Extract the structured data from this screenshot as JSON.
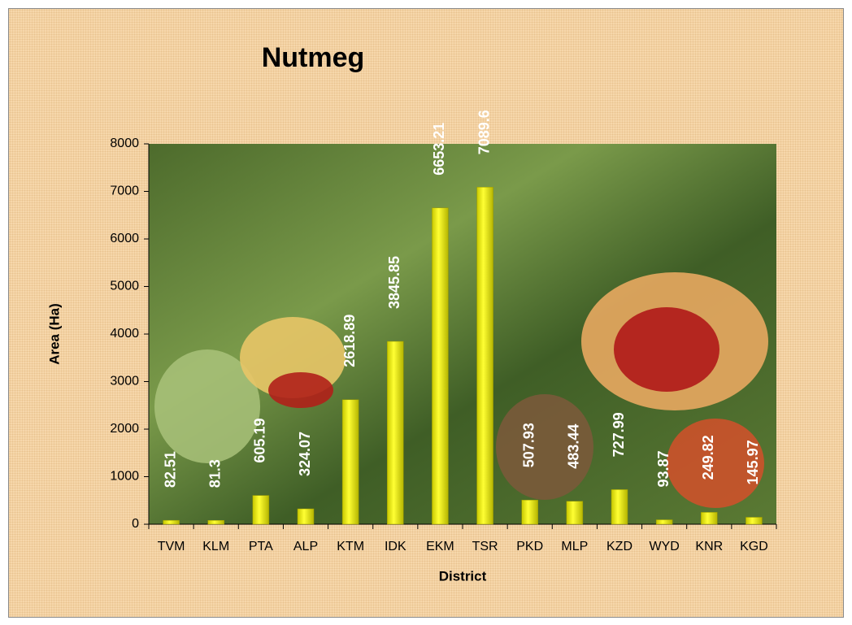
{
  "chart_data": {
    "type": "bar",
    "title": "Nutmeg",
    "x_label": "District",
    "y_label": "Area (Ha)",
    "categories": [
      "TVM",
      "KLM",
      "PTA",
      "ALP",
      "KTM",
      "IDK",
      "EKM",
      "TSR",
      "PKD",
      "MLP",
      "KZD",
      "WYD",
      "KNR",
      "KGD"
    ],
    "values": [
      82.51,
      81.3,
      605.19,
      324.07,
      2618.89,
      3845.85,
      6653.21,
      7089.6,
      507.93,
      483.44,
      727.99,
      93.87,
      249.82,
      145.97
    ],
    "color": "#ffff00",
    "ylim": [
      0,
      8000
    ],
    "yticks": [
      0,
      1000,
      2000,
      3000,
      4000,
      5000,
      6000,
      7000,
      8000
    ],
    "grid": false
  }
}
